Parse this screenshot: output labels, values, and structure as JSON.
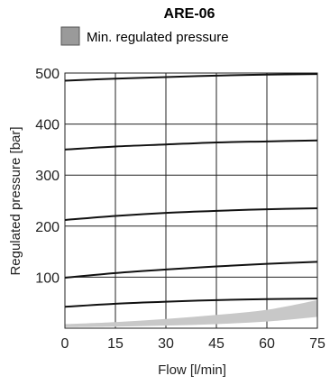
{
  "chart_data": {
    "type": "line",
    "title": "ARE-06",
    "legend": [
      {
        "label": "Min. regulated pressure",
        "color": "#9a9a9a"
      }
    ],
    "xlabel": "Flow [l/min]",
    "ylabel": "Regulated pressure [bar]",
    "xlim": [
      0,
      75
    ],
    "ylim": [
      0,
      500
    ],
    "xticks": [
      0,
      15,
      30,
      45,
      60,
      75
    ],
    "yticks": [
      100,
      200,
      300,
      400,
      500
    ],
    "grid": true,
    "x": [
      0,
      15,
      30,
      45,
      60,
      75
    ],
    "series": [
      {
        "values": [
          485,
          489,
          492,
          495,
          497,
          498
        ]
      },
      {
        "values": [
          350,
          356,
          360,
          364,
          366,
          368
        ]
      },
      {
        "values": [
          212,
          220,
          226,
          230,
          233,
          235
        ]
      },
      {
        "values": [
          99,
          108,
          115,
          121,
          126,
          130
        ]
      },
      {
        "values": [
          42,
          48,
          52,
          55,
          57,
          58
        ]
      }
    ],
    "band": {
      "upper": [
        8,
        12,
        18,
        26,
        36,
        55
      ],
      "lower": [
        2,
        3,
        5,
        8,
        13,
        22
      ],
      "color": "#c8c8c8"
    },
    "line_color": "#111111"
  }
}
